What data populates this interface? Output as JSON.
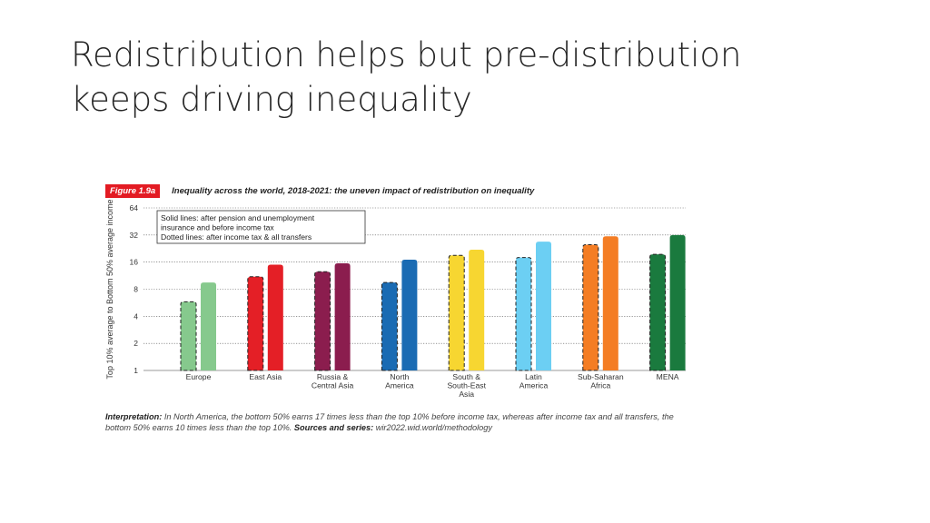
{
  "slide": {
    "title_line1": "Redistribution helps but pre-distribution",
    "title_line2": "keeps driving inequality"
  },
  "figure": {
    "badge": "Figure 1.9a",
    "title": "Inequality across the world, 2018-2021: the uneven impact of redistribution on inequality",
    "interpretation_label": "Interpretation:",
    "interpretation_text": " In North America, the bottom 50% earns 17 times less than the top 10% before income tax, whereas after income tax and all transfers, the bottom 50% earns 10 times less than the top 10%. ",
    "sources_label": "Sources and series:",
    "sources_text": " wir2022.wid.world/methodology"
  },
  "colors": {
    "europe": "#86c98d",
    "east_asia": "#e41f26",
    "russia": "#8b1d4e",
    "north_america": "#1a6bb3",
    "south_asia": "#f7d631",
    "latin_america": "#6ccff3",
    "africa": "#f47d24",
    "mena": "#1a7a3e",
    "badge": "#e31b23"
  },
  "chart_data": {
    "type": "bar",
    "ylabel": "Top 10% average to Bottom 50% average income",
    "yscale": "log2",
    "ylim": [
      1,
      64
    ],
    "yticks": [
      "1",
      "2",
      "4",
      "8",
      "16",
      "32",
      "64"
    ],
    "grid": "dotted horizontal",
    "legend": {
      "placement": "top-left",
      "lines": [
        "Solid lines: after pension and unemployment",
        "insurance and before income tax",
        "Dotted lines: after income tax & all transfers"
      ]
    },
    "categories": [
      [
        "Europe"
      ],
      [
        "East Asia"
      ],
      [
        "Russia &",
        "Central Asia"
      ],
      [
        "North",
        "America"
      ],
      [
        "South &",
        "South-East",
        "Asia"
      ],
      [
        "Latin",
        "America"
      ],
      [
        "Sub-Saharan",
        "Africa"
      ],
      [
        "MENA"
      ]
    ],
    "series": [
      {
        "name": "Dotted lines: after income tax & all transfers",
        "style": "dotted",
        "values": [
          5.8,
          11,
          12.5,
          9.5,
          19,
          18,
          25,
          19.5
        ]
      },
      {
        "name": "Solid lines: after pension and unemployment insurance and before income tax",
        "style": "solid",
        "values": [
          9.5,
          15,
          15.5,
          17,
          22,
          27,
          31,
          32
        ]
      }
    ],
    "bar_colors": [
      "#86c98d",
      "#e41f26",
      "#8b1d4e",
      "#1a6bb3",
      "#f7d631",
      "#6ccff3",
      "#f47d24",
      "#1a7a3e"
    ]
  }
}
